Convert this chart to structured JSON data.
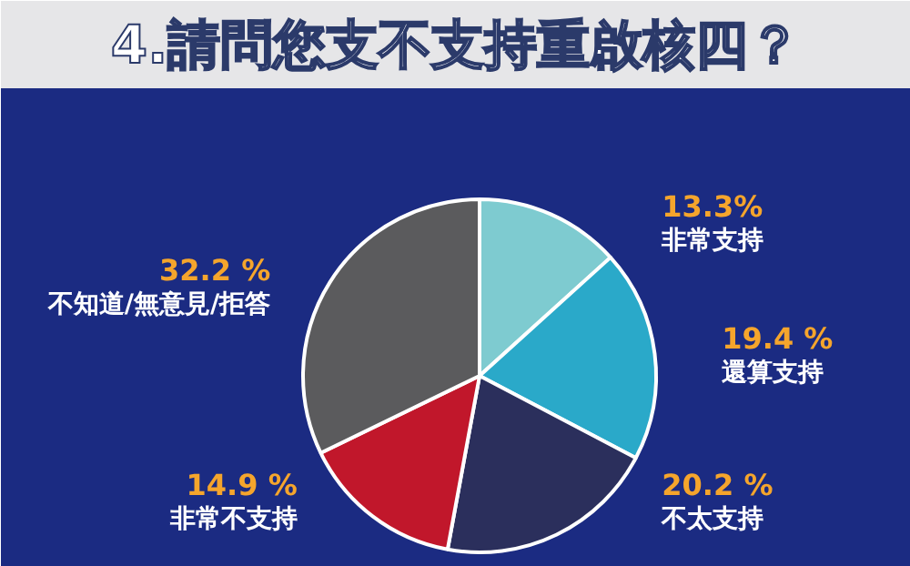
{
  "chart_data": {
    "type": "pie",
    "title": "4.請問您支不支持重啟核四？",
    "categories": [
      "非常支持",
      "還算支持",
      "不太支持",
      "非常不支持",
      "不知道/無意見/拒答"
    ],
    "values": [
      13.3,
      19.4,
      20.2,
      14.9,
      32.2
    ],
    "colors": [
      "#7ecbd0",
      "#2aa9c9",
      "#2b2f5c",
      "#c1172b",
      "#5b5b5d"
    ],
    "value_labels": [
      "13.3%",
      "19.4 %",
      "20.2 %",
      "14.9 %",
      "32.2 %"
    ]
  }
}
